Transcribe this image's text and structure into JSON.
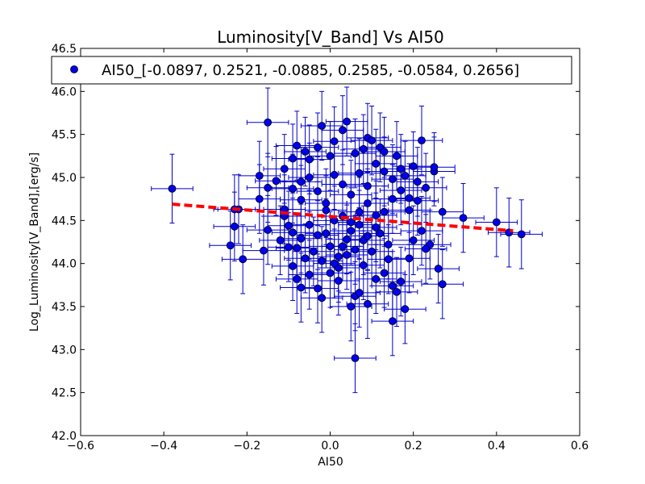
{
  "chart_data": {
    "type": "scatter",
    "title": "Luminosity[V_Band] Vs AI50",
    "xlabel": "AI50",
    "ylabel": "Log_Luminosity[V_Band],[erg/s]",
    "xlim": [
      -0.6,
      0.6
    ],
    "ylim": [
      42.0,
      46.5
    ],
    "xticks": [
      -0.6,
      -0.4,
      -0.2,
      0.0,
      0.2,
      0.4,
      0.6
    ],
    "xtick_labels": [
      "−0.6",
      "−0.4",
      "−0.2",
      "0.0",
      "0.2",
      "0.4",
      "0.6"
    ],
    "yticks": [
      42.0,
      42.5,
      43.0,
      43.5,
      44.0,
      44.5,
      45.0,
      45.5,
      46.0,
      46.5
    ],
    "ytick_labels": [
      "42.0",
      "42.5",
      "43.0",
      "43.5",
      "44.0",
      "44.5",
      "45.0",
      "45.5",
      "46.0",
      "46.5"
    ],
    "grid": false,
    "legend": {
      "placement": "top",
      "entries": [
        "AI50_[-0.0897, 0.2521, -0.0885, 0.2585, -0.0584, 0.2656]"
      ]
    },
    "colors": {
      "points": "#0000ee",
      "errorbars": "#0000cc",
      "fit": "#ff0000"
    },
    "series": [
      {
        "name": "AI50_[-0.0897, 0.2521, -0.0885, 0.2585, -0.0584, 0.2656]",
        "x_err": 0.05,
        "y_err": 0.4,
        "points": [
          [
            -0.38,
            44.87
          ],
          [
            0.46,
            44.34
          ],
          [
            0.4,
            44.48
          ],
          [
            0.43,
            44.36
          ],
          [
            0.32,
            44.53
          ],
          [
            0.27,
            43.76
          ],
          [
            0.26,
            43.94
          ],
          [
            0.27,
            44.6
          ],
          [
            0.24,
            44.22
          ],
          [
            0.23,
            44.17
          ],
          [
            0.06,
            42.9
          ],
          [
            -0.24,
            44.21
          ],
          [
            -0.23,
            44.43
          ],
          [
            -0.22,
            44.63
          ],
          [
            -0.21,
            44.05
          ],
          [
            -0.23,
            44.63
          ],
          [
            -0.15,
            45.64
          ],
          [
            -0.16,
            44.15
          ],
          [
            -0.15,
            44.39
          ],
          [
            -0.17,
            44.75
          ],
          [
            -0.17,
            45.02
          ],
          [
            -0.15,
            44.88
          ],
          [
            -0.13,
            44.96
          ],
          [
            -0.11,
            45.1
          ],
          [
            -0.11,
            44.55
          ],
          [
            -0.09,
            45.22
          ],
          [
            -0.08,
            45.37
          ],
          [
            -0.07,
            44.74
          ],
          [
            -0.06,
            45.3
          ],
          [
            -0.05,
            45.21
          ],
          [
            -0.03,
            45.35
          ],
          [
            -0.02,
            45.6
          ],
          [
            0.0,
            45.25
          ],
          [
            0.01,
            45.42
          ],
          [
            0.03,
            45.55
          ],
          [
            0.04,
            45.65
          ],
          [
            0.06,
            45.28
          ],
          [
            0.08,
            45.33
          ],
          [
            0.09,
            45.46
          ],
          [
            0.1,
            45.43
          ],
          [
            0.12,
            45.35
          ],
          [
            0.13,
            45.3
          ],
          [
            0.16,
            45.25
          ],
          [
            0.18,
            45.02
          ],
          [
            0.2,
            45.13
          ],
          [
            0.22,
            45.43
          ],
          [
            0.25,
            45.07
          ],
          [
            0.25,
            45.12
          ],
          [
            0.21,
            44.95
          ],
          [
            0.23,
            44.88
          ],
          [
            0.21,
            44.73
          ],
          [
            0.19,
            44.62
          ],
          [
            0.17,
            44.85
          ],
          [
            0.15,
            44.75
          ],
          [
            0.13,
            44.6
          ],
          [
            0.11,
            44.56
          ],
          [
            0.09,
            44.7
          ],
          [
            0.07,
            44.45
          ],
          [
            0.05,
            44.38
          ],
          [
            0.03,
            44.55
          ],
          [
            0.01,
            44.5
          ],
          [
            -0.01,
            44.62
          ],
          [
            -0.03,
            44.33
          ],
          [
            -0.05,
            44.45
          ],
          [
            -0.07,
            44.29
          ],
          [
            -0.09,
            44.36
          ],
          [
            -0.1,
            44.19
          ],
          [
            -0.09,
            43.97
          ],
          [
            -0.08,
            43.82
          ],
          [
            -0.07,
            43.72
          ],
          [
            -0.05,
            43.87
          ],
          [
            -0.03,
            43.71
          ],
          [
            -0.02,
            43.6
          ],
          [
            0.0,
            43.89
          ],
          [
            0.02,
            43.95
          ],
          [
            0.04,
            44.1
          ],
          [
            0.06,
            43.62
          ],
          [
            0.05,
            43.5
          ],
          [
            0.07,
            43.66
          ],
          [
            0.09,
            43.53
          ],
          [
            0.11,
            43.82
          ],
          [
            0.13,
            43.89
          ],
          [
            0.15,
            43.74
          ],
          [
            0.15,
            43.33
          ],
          [
            0.16,
            43.67
          ],
          [
            0.17,
            43.79
          ],
          [
            0.18,
            43.47
          ],
          [
            0.19,
            44.06
          ],
          [
            0.2,
            44.27
          ],
          [
            0.22,
            44.38
          ],
          [
            0.14,
            44.22
          ],
          [
            0.12,
            44.35
          ],
          [
            0.1,
            44.14
          ],
          [
            0.08,
            44.27
          ],
          [
            0.06,
            44.16
          ],
          [
            0.04,
            44.28
          ],
          [
            0.02,
            44.08
          ],
          [
            0.0,
            44.2
          ],
          [
            -0.02,
            44.03
          ],
          [
            -0.04,
            44.14
          ],
          [
            -0.06,
            44.06
          ],
          [
            -0.08,
            44.18
          ],
          [
            -0.1,
            44.44
          ],
          [
            -0.12,
            44.27
          ],
          [
            -0.11,
            44.63
          ],
          [
            -0.09,
            44.87
          ],
          [
            -0.07,
            44.95
          ],
          [
            -0.05,
            45.0
          ],
          [
            -0.03,
            44.84
          ],
          [
            -0.01,
            44.7
          ],
          [
            0.01,
            45.03
          ],
          [
            0.03,
            44.92
          ],
          [
            0.05,
            44.8
          ],
          [
            0.07,
            45.05
          ],
          [
            0.09,
            44.9
          ],
          [
            0.11,
            45.16
          ],
          [
            0.13,
            45.07
          ],
          [
            0.15,
            44.98
          ],
          [
            0.17,
            45.1
          ],
          [
            0.19,
            44.76
          ],
          [
            0.05,
            44.48
          ],
          [
            0.07,
            44.6
          ],
          [
            0.09,
            44.32
          ],
          [
            0.11,
            44.42
          ],
          [
            0.03,
            44.2
          ],
          [
            -0.01,
            44.35
          ],
          [
            0.01,
            44.0
          ],
          [
            0.02,
            43.8
          ],
          [
            0.08,
            43.98
          ],
          [
            0.14,
            44.05
          ]
        ]
      }
    ],
    "fit_line": {
      "x": [
        -0.38,
        0.44
      ],
      "y": [
        44.69,
        44.38
      ],
      "style": "dashed"
    }
  }
}
